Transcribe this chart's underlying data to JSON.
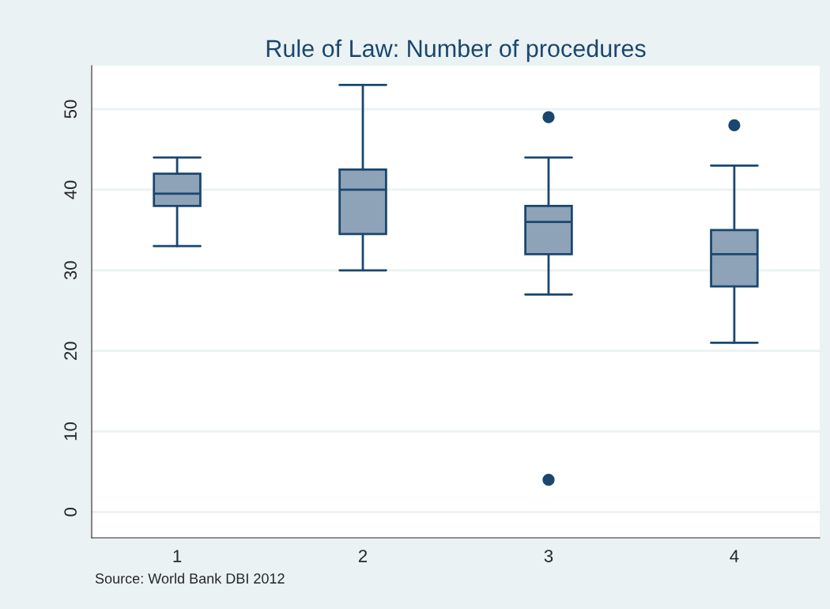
{
  "chart_data": {
    "type": "box",
    "title": "Rule of Law: Number of procedures",
    "categories": [
      "1",
      "2",
      "3",
      "4"
    ],
    "series": [
      {
        "color": "#8ea3b8",
        "boxes": [
          {
            "low": 33,
            "q1": 38,
            "median": 39.5,
            "q3": 42,
            "high": 44
          },
          {
            "low": 30,
            "q1": 34.5,
            "median": 40,
            "q3": 42.5,
            "high": 53
          },
          {
            "low": 27,
            "q1": 32,
            "median": 36,
            "q3": 38,
            "high": 44,
            "outliers": [
              49,
              4
            ]
          },
          {
            "low": 21,
            "q1": 28,
            "median": 32,
            "q3": 35,
            "high": 43,
            "outliers": [
              48
            ]
          }
        ]
      }
    ],
    "ylim": [
      -3.2,
      55.4
    ],
    "yticks": [
      0,
      10,
      20,
      30,
      40,
      50
    ],
    "grid": "y",
    "annotations": [
      "Source: World Bank DBI 2012"
    ]
  }
}
